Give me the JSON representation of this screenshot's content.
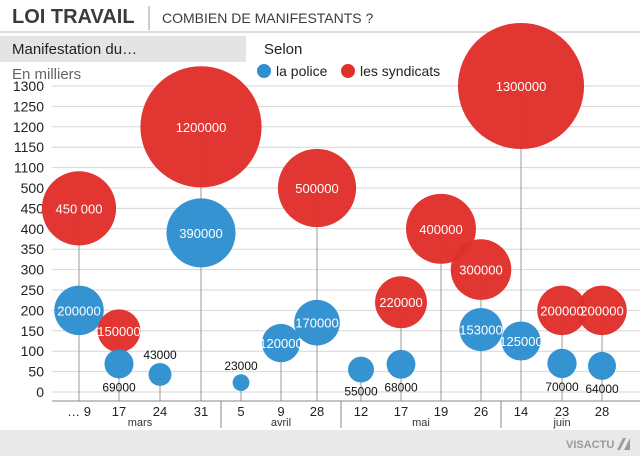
{
  "header": {
    "title": "LOI TRAVAIL",
    "subtitle": "COMBIEN DE MANIFESTANTS ?"
  },
  "brand": "VISACTU",
  "chart_data": {
    "type": "bubble",
    "subtitle": "Manifestation du…",
    "unit_label": "En milliers",
    "legend_title": "Selon",
    "series": [
      {
        "name": "la police",
        "color": "#2f8fd0"
      },
      {
        "name": "les syndicats",
        "color": "#e0302a"
      }
    ],
    "y_ticks": [
      "0",
      "50",
      "100",
      "150",
      "200",
      "250",
      "300",
      "350",
      "400",
      "450",
      "500",
      "1100",
      "1150",
      "1200",
      "1250",
      "1300"
    ],
    "months": [
      {
        "name": "mars",
        "days": [
          "… 9",
          "17",
          "24",
          "31"
        ]
      },
      {
        "name": "avril",
        "days": [
          "5",
          "9",
          "28"
        ]
      },
      {
        "name": "mai",
        "days": [
          "12",
          "17",
          "19",
          "26"
        ]
      },
      {
        "name": "juin",
        "days": [
          "14",
          "23",
          "28"
        ]
      }
    ],
    "points": [
      {
        "date": "… 9",
        "police": 200000,
        "police_label": "200000",
        "syndicats": 450000,
        "syndicats_label": "450 000"
      },
      {
        "date": "17",
        "police": 69000,
        "police_label": "69000",
        "syndicats": 150000,
        "syndicats_label": "150000"
      },
      {
        "date": "24",
        "police": 43000,
        "police_label": "43000",
        "syndicats": null,
        "syndicats_label": null
      },
      {
        "date": "31",
        "police": 390000,
        "police_label": "390000",
        "syndicats": 1200000,
        "syndicats_label": "1200000"
      },
      {
        "date": "5",
        "police": 23000,
        "police_label": "23000",
        "syndicats": null,
        "syndicats_label": null
      },
      {
        "date": "9",
        "police": 120000,
        "police_label": "120000",
        "syndicats": null,
        "syndicats_label": null
      },
      {
        "date": "28",
        "police": 170000,
        "police_label": "170000",
        "syndicats": 500000,
        "syndicats_label": "500000"
      },
      {
        "date": "12",
        "police": 55000,
        "police_label": "55000",
        "syndicats": null,
        "syndicats_label": null
      },
      {
        "date": "17",
        "police": 68000,
        "police_label": "68000",
        "syndicats": 220000,
        "syndicats_label": "220000"
      },
      {
        "date": "19",
        "police": null,
        "police_label": null,
        "syndicats": 400000,
        "syndicats_label": "400000"
      },
      {
        "date": "26",
        "police": 153000,
        "police_label": "153000",
        "syndicats": 300000,
        "syndicats_label": "300000"
      },
      {
        "date": "14",
        "police": 125000,
        "police_label": "125000",
        "syndicats": 1300000,
        "syndicats_label": "1300000"
      },
      {
        "date": "23",
        "police": 70000,
        "police_label": "70000",
        "syndicats": 200000,
        "syndicats_label": "200000"
      },
      {
        "date": "28",
        "police": 64000,
        "police_label": "64000",
        "syndicats": 200000,
        "syndicats_label": "200000"
      }
    ]
  }
}
